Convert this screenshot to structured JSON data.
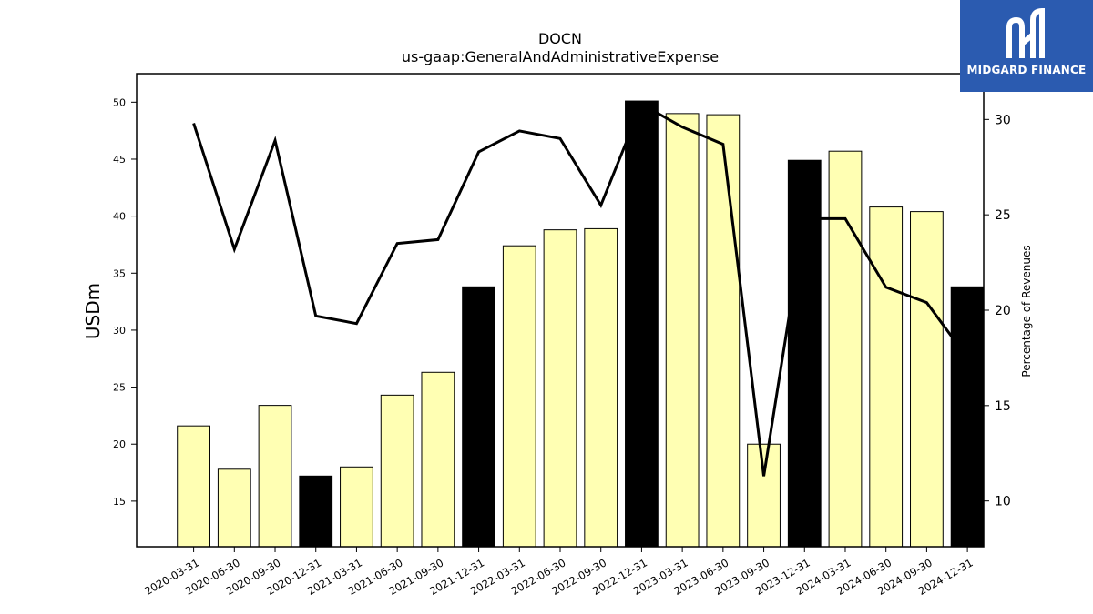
{
  "brand": {
    "name": "MIDGARD FINANCE",
    "color": "#2b5bb0"
  },
  "chart_data": {
    "type": "bar",
    "title": "DOCN",
    "subtitle": "us-gaap:GeneralAndAdministrativeExpense",
    "ylabel": "USDm",
    "y2label": "Percentage of Revenues",
    "ylim": [
      11,
      52.5
    ],
    "y2lim": [
      7.6,
      32.4
    ],
    "yticks": [
      15,
      20,
      25,
      30,
      35,
      40,
      45,
      50
    ],
    "y2ticks": [
      10,
      15,
      20,
      25,
      30
    ],
    "categories": [
      "2020-03-31",
      "2020-06-30",
      "2020-09-30",
      "2020-12-31",
      "2021-03-31",
      "2021-06-30",
      "2021-09-30",
      "2021-12-31",
      "2022-03-31",
      "2022-06-30",
      "2022-09-30",
      "2022-12-31",
      "2023-03-31",
      "2023-06-30",
      "2023-09-30",
      "2023-12-31",
      "2024-03-31",
      "2024-06-30",
      "2024-09-30",
      "2024-12-31"
    ],
    "series": [
      {
        "type": "bar",
        "values": [
          21.6,
          17.8,
          23.4,
          17.2,
          18.0,
          24.3,
          26.3,
          33.8,
          37.4,
          38.8,
          38.9,
          50.1,
          49.0,
          48.9,
          20.0,
          44.9,
          45.7,
          40.8,
          40.4,
          33.8
        ],
        "highlight": [
          false,
          false,
          false,
          true,
          false,
          false,
          false,
          true,
          false,
          false,
          false,
          true,
          false,
          false,
          false,
          true,
          false,
          false,
          false,
          true
        ],
        "color": "#ffffb3",
        "highlight_color": "#000000"
      },
      {
        "type": "line",
        "axis": "secondary",
        "values": [
          29.8,
          23.2,
          28.9,
          19.7,
          19.3,
          23.5,
          23.7,
          28.3,
          29.4,
          29.0,
          25.5,
          30.8,
          29.6,
          28.7,
          11.3,
          24.8,
          24.8,
          21.2,
          20.4,
          17.5
        ],
        "color": "#000000"
      }
    ],
    "grid": false,
    "legend": "none"
  }
}
